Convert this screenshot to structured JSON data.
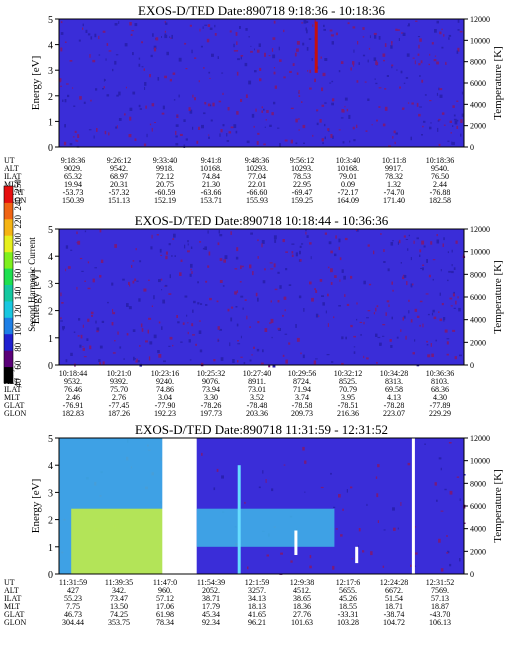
{
  "chart_data": [
    {
      "type": "heatmap",
      "title": "EXOS-D/TED   Date:890718   9:18:36 - 10:18:36",
      "ylabel": "Energy [eV]",
      "y2label": "Temperature [K]",
      "ylim": [
        0,
        5
      ],
      "y2lim": [
        0,
        12000
      ],
      "yticks": [
        0,
        1,
        2,
        3,
        4,
        5
      ],
      "y2ticks": [
        0,
        2000,
        4000,
        6000,
        8000,
        10000,
        12000
      ],
      "background_color": "#3a2dd8",
      "features": [
        {
          "kind": "spike",
          "x_frac": 0.635,
          "energy_range": [
            2.9,
            4.9
          ],
          "color": "#c41010"
        }
      ],
      "table": {
        "row_labels": [
          "UT",
          "ALT",
          "ILAT",
          "MLT",
          "GLAT",
          "GLON"
        ],
        "columns": [
          [
            "9:18:36",
            "9029.",
            "65.32",
            "19.94",
            "-53.73",
            "150.39"
          ],
          [
            "9:26:12",
            "9542.",
            "68.97",
            "20.31",
            "-57.32",
            "151.13"
          ],
          [
            "9:33:40",
            "9918.",
            "72.12",
            "20.75",
            "-60.59",
            "152.19"
          ],
          [
            "9:41:8",
            "10168.",
            "74.84",
            "21.30",
            "-63.66",
            "153.71"
          ],
          [
            "9:48:36",
            "10293.",
            "77.04",
            "22.01",
            "-66.60",
            "155.93"
          ],
          [
            "9:56:12",
            "10293.",
            "78.53",
            "22.95",
            "-69.47",
            "159.25"
          ],
          [
            "10:3:40",
            "10168.",
            "79.01",
            "0.09",
            "-72.17",
            "164.09"
          ],
          [
            "10:11:8",
            "9917.",
            "78.32",
            "1.32",
            "-74.70",
            "171.40"
          ],
          [
            "10:18:36",
            "9540.",
            "76.50",
            "2.44",
            "-76.88",
            "182.58"
          ]
        ]
      }
    },
    {
      "type": "heatmap",
      "title": "EXOS-D/TED   Date:890718   10:18:44 - 10:36:36",
      "ylabel": "Energy [eV]",
      "y2label": "Temperature [K]",
      "ylim": [
        0,
        5
      ],
      "y2lim": [
        0,
        12000
      ],
      "yticks": [
        0,
        1,
        2,
        3,
        4,
        5
      ],
      "y2ticks": [
        0,
        2000,
        4000,
        6000,
        8000,
        10000,
        12000
      ],
      "background_color": "#3a2dd8",
      "features": [],
      "table": {
        "row_labels": [
          "UT",
          "ALT",
          "ILAT",
          "MLT",
          "GLAT",
          "GLON"
        ],
        "columns": [
          [
            "10:18:44",
            "9532.",
            "76.46",
            "2.46",
            "-76.91",
            "182.83"
          ],
          [
            "10:21:0",
            "9392.",
            "75.70",
            "2.76",
            "-77.45",
            "187.26"
          ],
          [
            "10:23:16",
            "9240.",
            "74.86",
            "3.04",
            "-77.90",
            "192.23"
          ],
          [
            "10:25:32",
            "9076.",
            "73.94",
            "3.30",
            "-78.26",
            "197.73"
          ],
          [
            "10:27:40",
            "8911.",
            "73.01",
            "3.52",
            "-78.48",
            "203.36"
          ],
          [
            "10:29:56",
            "8724.",
            "71.94",
            "3.74",
            "-78.58",
            "209.73"
          ],
          [
            "10:32:12",
            "8525.",
            "70.79",
            "3.95",
            "-78.51",
            "216.36"
          ],
          [
            "10:34:28",
            "8313.",
            "69.58",
            "4.13",
            "-78.28",
            "223.07"
          ],
          [
            "10:36:36",
            "8103.",
            "68.36",
            "4.30",
            "-77.89",
            "229.29"
          ]
        ]
      }
    },
    {
      "type": "heatmap",
      "title": "EXOS-D/TED   Date:890718   11:31:59 - 12:31:52",
      "ylabel": "Energy [eV]",
      "y2label": "Temperature [K]",
      "ylim": [
        0,
        5
      ],
      "y2lim": [
        0,
        12000
      ],
      "yticks": [
        0,
        1,
        2,
        3,
        4,
        5
      ],
      "y2ticks": [
        0,
        2000,
        4000,
        6000,
        8000,
        10000,
        12000
      ],
      "background_color": "#3a2dd8",
      "features": [
        {
          "kind": "region",
          "x_frac": [
            0.0,
            0.33
          ],
          "energy_range": [
            0,
            5
          ],
          "color": "#3fb6e8"
        },
        {
          "kind": "region",
          "x_frac": [
            0.03,
            0.31
          ],
          "energy_range": [
            0,
            2.4
          ],
          "color": "#c8f040"
        },
        {
          "kind": "gap",
          "x_frac": [
            0.255,
            0.34
          ],
          "energy_range": [
            0,
            5
          ],
          "color": "#ffffff"
        },
        {
          "kind": "region",
          "x_frac": [
            0.34,
            0.68
          ],
          "energy_range": [
            1.0,
            2.4
          ],
          "color": "#3fb6e8"
        },
        {
          "kind": "spike",
          "x_frac": 0.445,
          "energy_range": [
            0,
            4.0
          ],
          "color": "#66ddff"
        },
        {
          "kind": "spike",
          "x_frac": 0.585,
          "energy_range": [
            0.7,
            1.6
          ],
          "color": "#ffffff"
        },
        {
          "kind": "spike",
          "x_frac": 0.735,
          "energy_range": [
            0.4,
            1.0
          ],
          "color": "#ffffff"
        },
        {
          "kind": "spike",
          "x_frac": 0.875,
          "energy_range": [
            0,
            5
          ],
          "color": "#ffffff"
        }
      ],
      "table": {
        "row_labels": [
          "UT",
          "ALT",
          "ILAT",
          "MLT",
          "GLAT",
          "GLON"
        ],
        "columns": [
          [
            "11:31:59",
            "427",
            "55.23",
            "7.75",
            "46.73",
            "304.44"
          ],
          [
            "11:39:35",
            "342.",
            "73.47",
            "13.50",
            "74.25",
            "353.75"
          ],
          [
            "11:47:0",
            "960.",
            "57.12",
            "17.06",
            "61.98",
            "78.34"
          ],
          [
            "11:54:39",
            "2052.",
            "38.71",
            "17.79",
            "45.34",
            "92.34"
          ],
          [
            "12:1:59",
            "3257.",
            "34.13",
            "18.13",
            "41.65",
            "96.21"
          ],
          [
            "12:9:38",
            "4512.",
            "38.65",
            "18.36",
            "27.76",
            "101.63"
          ],
          [
            "12:17:6",
            "5655.",
            "45.26",
            "18.55",
            "-33.31",
            "103.28"
          ],
          [
            "12:24:28",
            "6672.",
            "51.54",
            "18.71",
            "-38.74",
            "104.72"
          ],
          [
            "12:31:52",
            "7569.",
            "57.13",
            "18.87",
            "-43.70",
            "106.13"
          ]
        ]
      }
    }
  ],
  "colorbar": {
    "label": "Second Harmonic Current",
    "ticks": [
      "40",
      "60",
      "80",
      "100",
      "120",
      "140",
      "160",
      "180",
      "200",
      "220",
      "240",
      "250"
    ],
    "range": [
      40,
      250
    ],
    "colors": [
      "#000000",
      "#5a0078",
      "#2020d0",
      "#1e7fe6",
      "#19c7e0",
      "#14c8a0",
      "#1ee050",
      "#7ff01e",
      "#e6f01e",
      "#f5b414",
      "#f06414",
      "#e60f0f"
    ]
  }
}
